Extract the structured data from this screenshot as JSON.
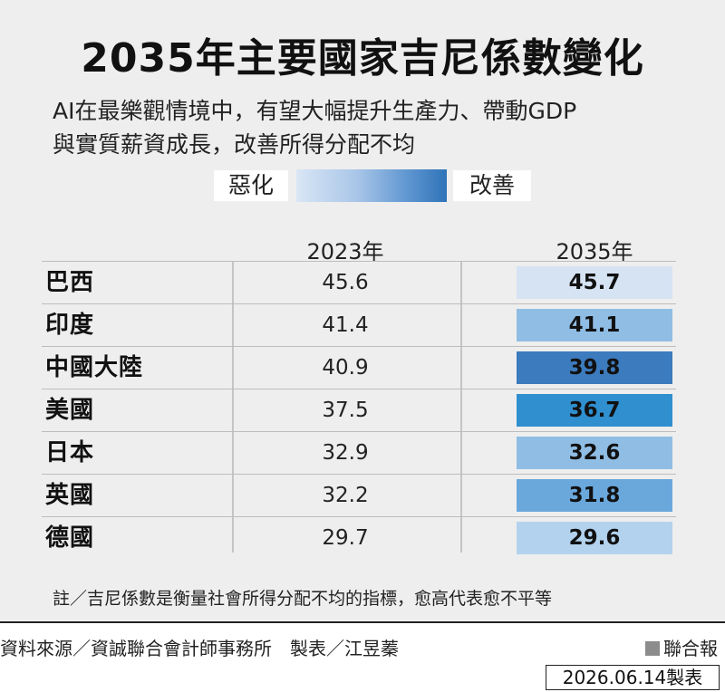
{
  "title": "2035年主要國家吉尼係數變化",
  "subtitle_line1": "AI在最樂觀情境中，有望大幅提升生產力、帶動GDP",
  "subtitle_line2": "與實質薪資成長，改善所得分配不均",
  "legend": {
    "worse_label": "惡化",
    "better_label": "改善"
  },
  "chart_data": {
    "type": "table",
    "columns": [
      "2023年",
      "2035年"
    ],
    "rows": [
      {
        "country": "巴西",
        "v2023": "45.6",
        "v2035": "45.7",
        "shade": "#d5e3f3"
      },
      {
        "country": "印度",
        "v2023": "41.4",
        "v2035": "41.1",
        "shade": "#8fbde4"
      },
      {
        "country": "中國大陸",
        "v2023": "40.9",
        "v2035": "39.8",
        "shade": "#3c7bbd"
      },
      {
        "country": "美國",
        "v2023": "37.5",
        "v2035": "36.7",
        "shade": "#2f8fcf"
      },
      {
        "country": "日本",
        "v2023": "32.9",
        "v2035": "32.6",
        "shade": "#8fbde4"
      },
      {
        "country": "英國",
        "v2023": "32.2",
        "v2035": "31.8",
        "shade": "#6aa8dc"
      },
      {
        "country": "德國",
        "v2023": "29.7",
        "v2035": "29.6",
        "shade": "#b3d2ee"
      }
    ]
  },
  "note": "註／吉尼係數是衡量社會所得分配不均的指標，愈高代表愈不平等",
  "source": "資料來源／資誠聯合會計師事務所　製表／江昱蓁",
  "brand": "聯合報",
  "date": "2026.06.14製表"
}
